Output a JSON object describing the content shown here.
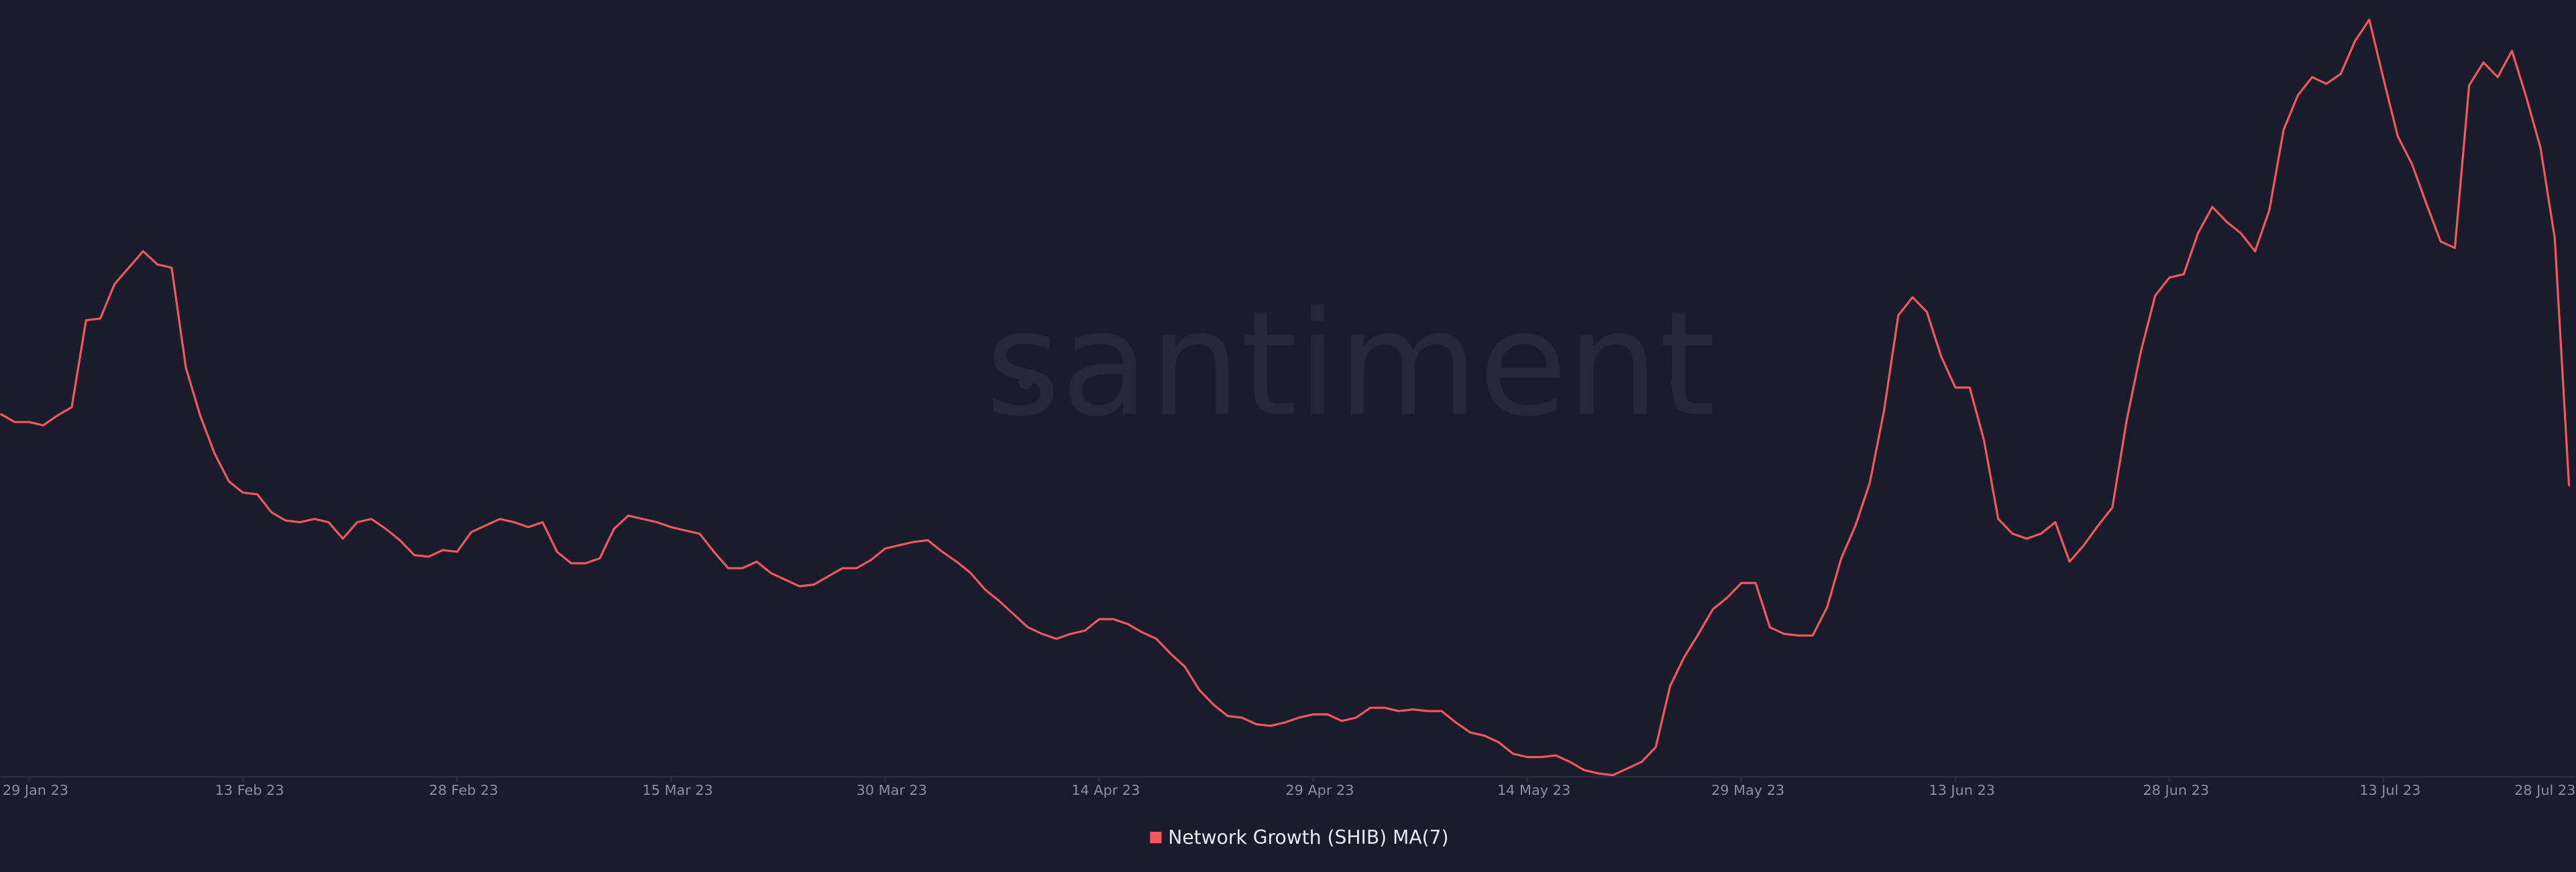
{
  "chart_data": {
    "type": "line",
    "watermark": "santiment",
    "x": [
      -2,
      -1,
      0,
      1,
      2,
      3,
      4,
      5,
      6,
      7,
      8,
      9,
      10,
      11,
      12,
      13,
      14,
      15,
      16,
      17,
      18,
      19,
      20,
      21,
      22,
      23,
      24,
      25,
      26,
      27,
      28,
      29,
      30,
      31,
      32,
      33,
      34,
      35,
      36,
      37,
      38,
      39,
      40,
      41,
      42,
      43,
      44,
      45,
      46,
      47,
      48,
      49,
      50,
      51,
      52,
      53,
      54,
      55,
      56,
      57,
      58,
      59,
      60,
      61,
      62,
      63,
      64,
      65,
      66,
      67,
      68,
      69,
      70,
      71,
      72,
      73,
      74,
      75,
      76,
      77,
      78,
      79,
      80,
      81,
      82,
      83,
      84,
      85,
      86,
      87,
      88,
      89,
      90,
      91,
      92,
      93,
      94,
      95,
      96,
      97,
      98,
      99,
      100,
      101,
      102,
      103,
      104,
      105,
      106,
      107,
      108,
      109,
      110,
      111,
      112,
      113,
      114,
      115,
      116,
      117,
      118,
      119,
      120,
      121,
      122,
      123,
      124,
      125,
      126,
      127,
      128,
      129,
      130,
      131,
      132,
      133,
      134,
      135,
      136,
      137,
      138,
      139,
      140,
      141,
      142,
      143,
      144,
      145,
      146,
      147,
      148,
      149,
      150,
      151,
      152,
      153,
      154,
      155,
      156,
      157,
      158,
      159,
      160,
      161,
      162,
      163,
      164,
      165,
      166,
      167,
      168,
      169,
      170,
      171,
      172,
      173,
      174,
      175,
      176,
      177,
      178
    ],
    "series": [
      {
        "name": "Network Growth (SHIB) MA(7)",
        "color": "#f0585c",
        "values": [
          220,
          215,
          215,
          213,
          219,
          224,
          277,
          278,
          299,
          309,
          319,
          311,
          309,
          248,
          219,
          196,
          179,
          172,
          171,
          160,
          155,
          154,
          156,
          154,
          144,
          154,
          156,
          150,
          143,
          134,
          133,
          137,
          136,
          148,
          152,
          156,
          154,
          151,
          154,
          136,
          129,
          129,
          132,
          150,
          158,
          156,
          154,
          151,
          149,
          147,
          136,
          126,
          126,
          130,
          123,
          119,
          115,
          116,
          121,
          126,
          126,
          131,
          138,
          140,
          142,
          143,
          136,
          130,
          123,
          113,
          106,
          98,
          90,
          86,
          83,
          86,
          88,
          95,
          95,
          92,
          87,
          83,
          74,
          66,
          52,
          43,
          36,
          35,
          31,
          30,
          32,
          35,
          37,
          37,
          33,
          35,
          41,
          41,
          39,
          40,
          39,
          39,
          32,
          26,
          24,
          20,
          13,
          11,
          11,
          12,
          8,
          3,
          1,
          0,
          4,
          8,
          17,
          54,
          72,
          86,
          101,
          108,
          117,
          117,
          90,
          86,
          85,
          85,
          102,
          132,
          152,
          178,
          222,
          280,
          291,
          282,
          255,
          236,
          236,
          204,
          156,
          147,
          144,
          147,
          154,
          130,
          140,
          152,
          163,
          216,
          258,
          292,
          303,
          305,
          330,
          346,
          337,
          330,
          319,
          344,
          393,
          414,
          425,
          421,
          427,
          447,
          460,
          424,
          389,
          372,
          348,
          325,
          321,
          420,
          434,
          425,
          441,
          413,
          382,
          327,
          176
        ]
      }
    ],
    "xlim": [
      -2,
      178
    ],
    "ylim": [
      0,
      472
    ],
    "xticks": [
      {
        "value": 0,
        "label": "29 Jan 23"
      },
      {
        "value": 15,
        "label": "13 Feb 23"
      },
      {
        "value": 30,
        "label": "28 Feb 23"
      },
      {
        "value": 45,
        "label": "15 Mar 23"
      },
      {
        "value": 60,
        "label": "30 Mar 23"
      },
      {
        "value": 75,
        "label": "14 Apr 23"
      },
      {
        "value": 90,
        "label": "29 Apr 23"
      },
      {
        "value": 105,
        "label": "14 May 23"
      },
      {
        "value": 120,
        "label": "29 May 23"
      },
      {
        "value": 135,
        "label": "13 Jun 23"
      },
      {
        "value": 150,
        "label": "28 Jun 23"
      },
      {
        "value": 165,
        "label": "13 Jul 23"
      },
      {
        "value": 180,
        "label": "28 Jul 23"
      }
    ]
  }
}
